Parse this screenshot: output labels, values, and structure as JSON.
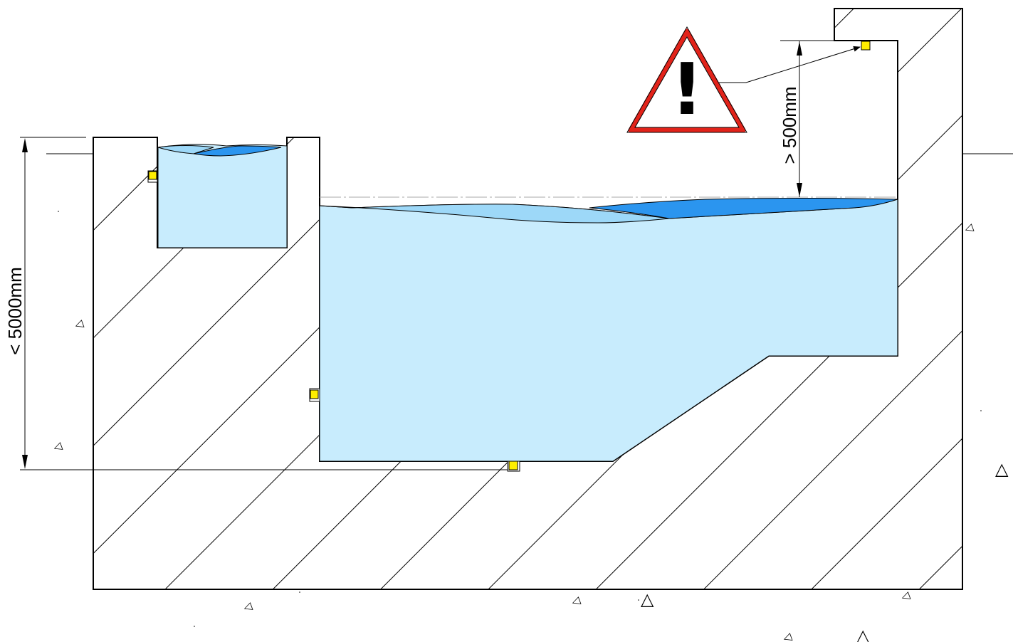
{
  "dimensions": {
    "tank_depth_label": "< 5000mm",
    "freeboard_label": "> 500mm"
  },
  "warning": {
    "symbol": "!",
    "icon": "warning-triangle-icon",
    "border_color": "#e2231a"
  },
  "colors": {
    "water_light": "#c8ecfd",
    "water_mid": "#9dd8f8",
    "water_dark": "#2b95ef",
    "sensor": "#ffee00"
  }
}
